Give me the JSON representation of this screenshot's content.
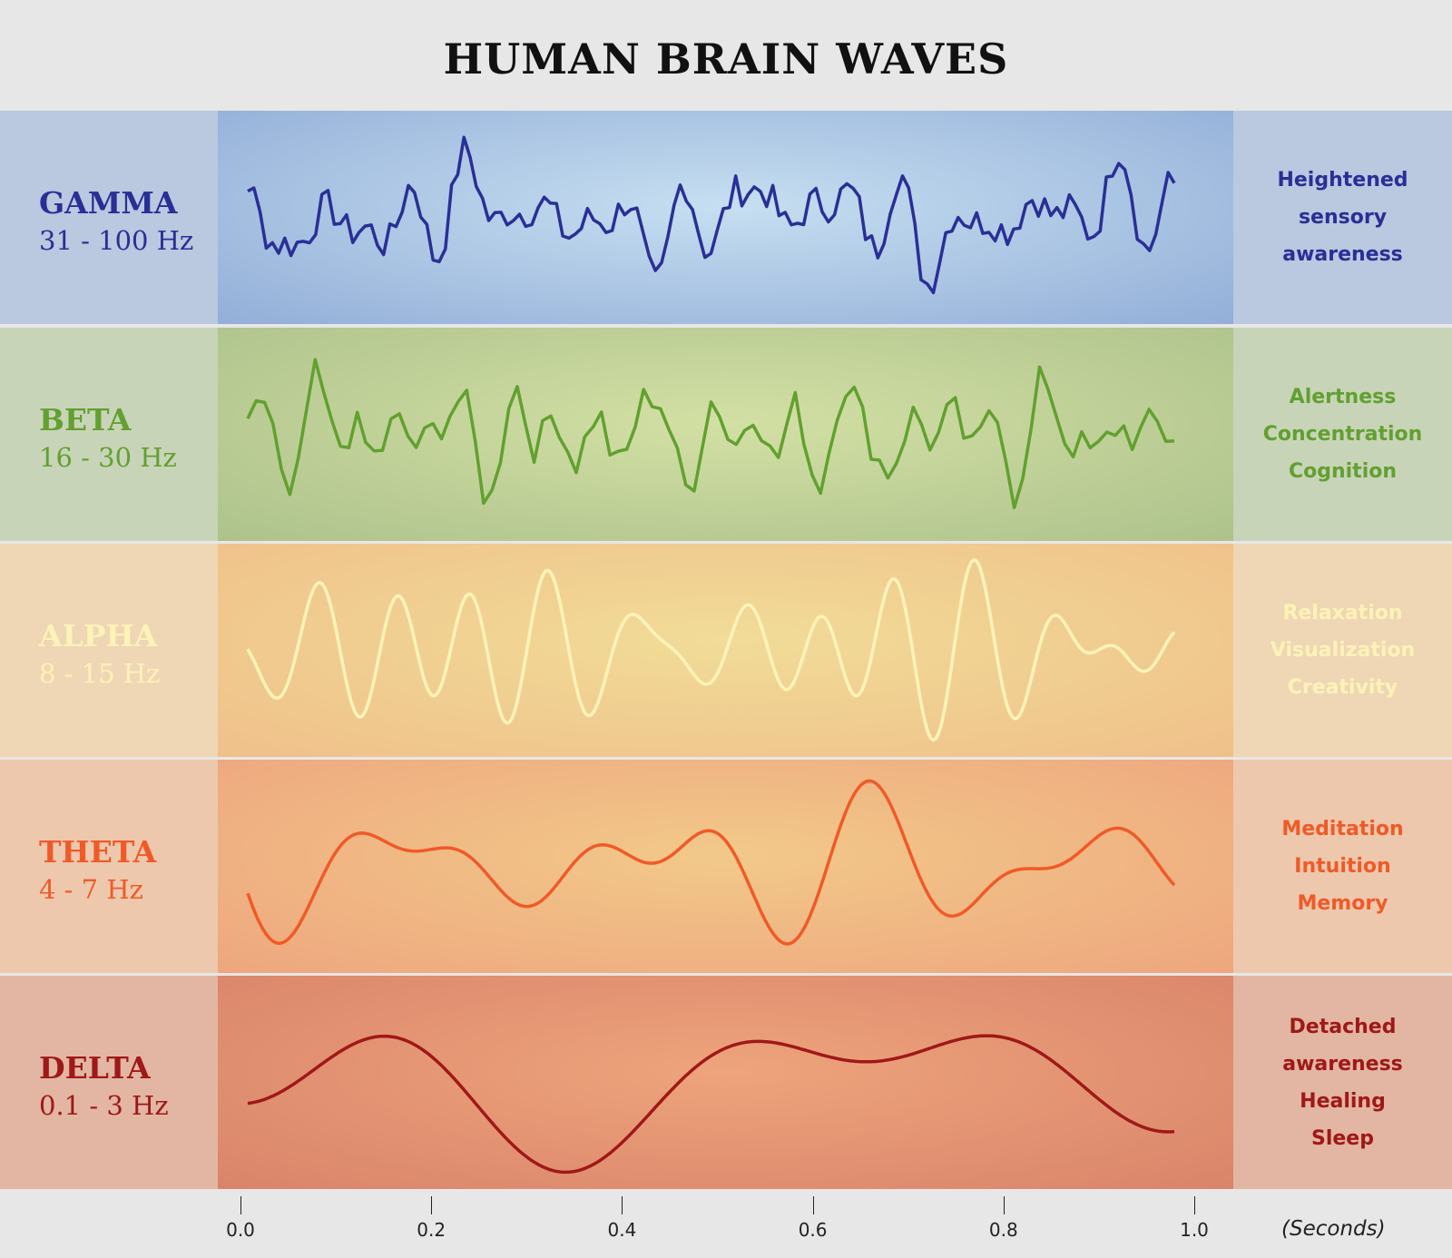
{
  "title": "HUMAN BRAIN WAVES",
  "bands": [
    {
      "name": "GAMMA",
      "freq": "31 - 100 Hz",
      "effects": [
        "Heightened",
        "sensory",
        "awareness"
      ],
      "color": "#2a2f96",
      "left_bg": "#bac8e0",
      "mid_bg_center": "#c6dff1",
      "mid_bg_edge": "#93aed8",
      "right_bg": "#bac8e0"
    },
    {
      "name": "BETA",
      "freq": "16 - 30 Hz",
      "effects": [
        "Alertness",
        "Concentration",
        "Cognition"
      ],
      "color": "#62a030",
      "left_bg": "#c8d4b8",
      "mid_bg_center": "#d3e0a4",
      "mid_bg_edge": "#adc28c",
      "right_bg": "#c8d4b8"
    },
    {
      "name": "ALPHA",
      "freq": "8 - 15 Hz",
      "effects": [
        "Relaxation",
        "Visualization",
        "Creativity"
      ],
      "color": "#fff3b8",
      "left_bg": "#efd6b5",
      "mid_bg_center": "#f1dc98",
      "mid_bg_edge": "#f0c08a",
      "right_bg": "#efd6b5"
    },
    {
      "name": "THETA",
      "freq": "4 - 7 Hz",
      "effects": [
        "Meditation",
        "Intuition",
        "Memory"
      ],
      "color": "#f05a28",
      "left_bg": "#edc8ad",
      "mid_bg_center": "#f2c98a",
      "mid_bg_edge": "#eea67e",
      "right_bg": "#edc8ad"
    },
    {
      "name": "DELTA",
      "freq": "0.1 - 3 Hz",
      "effects": [
        "Detached",
        "awareness",
        "Healing",
        "Sleep"
      ],
      "color": "#a01818",
      "left_bg": "#e2b6a2",
      "mid_bg_center": "#eea47c",
      "mid_bg_edge": "#d9846a",
      "right_bg": "#e2b6a2"
    }
  ],
  "axis": {
    "ticks": [
      "0.0",
      "0.2",
      "0.4",
      "0.6",
      "0.8",
      "1.0"
    ],
    "unit": "(Seconds)"
  }
}
